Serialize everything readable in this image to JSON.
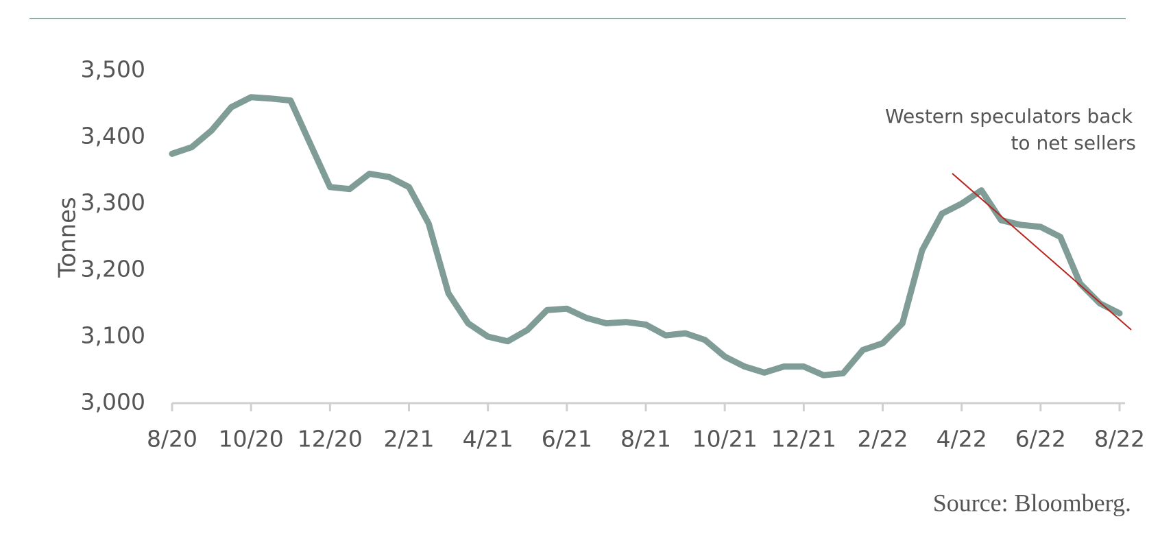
{
  "chart_data": {
    "type": "line",
    "y_label": "Tonnes",
    "annotation": [
      "Western speculators back",
      "to net sellers"
    ],
    "source": "Source: Bloomberg.",
    "categories": [
      "8/20",
      null,
      null,
      null,
      "10/20",
      null,
      null,
      null,
      "12/20",
      null,
      null,
      null,
      "2/21",
      null,
      null,
      null,
      "4/21",
      null,
      null,
      null,
      "6/21",
      null,
      null,
      null,
      "8/21",
      null,
      null,
      null,
      "10/21",
      null,
      null,
      null,
      "12/21",
      null,
      null,
      null,
      "2/22",
      null,
      null,
      null,
      "4/22",
      null,
      null,
      null,
      "6/22",
      null,
      null,
      null,
      "8/22"
    ],
    "series": [
      {
        "color": "#7f9c96",
        "values": [
          3375,
          3385,
          3410,
          3445,
          3460,
          3458,
          3455,
          3390,
          3325,
          3322,
          3345,
          3340,
          3325,
          3270,
          3165,
          3120,
          3100,
          3093,
          3110,
          3140,
          3142,
          3128,
          3120,
          3122,
          3118,
          3102,
          3105,
          3095,
          3070,
          3055,
          3046,
          3055,
          3055,
          3042,
          3045,
          3080,
          3090,
          3120,
          3230,
          3285,
          3300,
          3320,
          3275,
          3268,
          3265,
          3250,
          3180,
          3150,
          3135
        ]
      }
    ],
    "ylim": [
      3000,
      3500
    ],
    "yticks": [
      {
        "value": 3000,
        "label": "3,000"
      },
      {
        "value": 3100,
        "label": "3,100"
      },
      {
        "value": 3200,
        "label": "3,200"
      },
      {
        "value": 3300,
        "label": "3,300"
      },
      {
        "value": 3400,
        "label": "3,400"
      },
      {
        "value": 3500,
        "label": "3,500"
      }
    ]
  }
}
